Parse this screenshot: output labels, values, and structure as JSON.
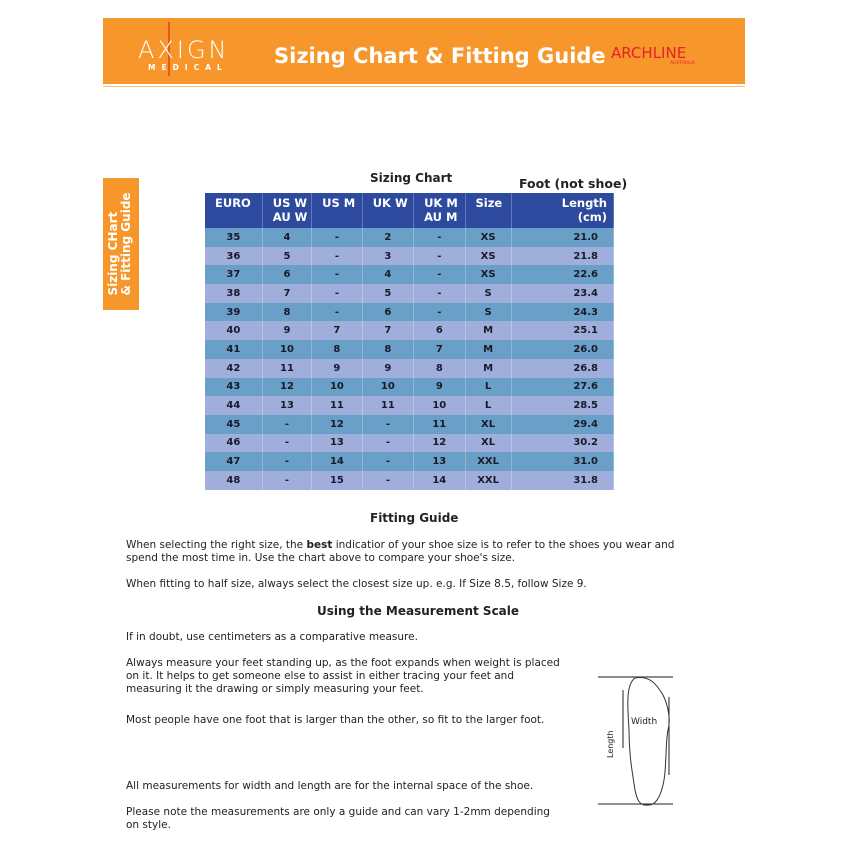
{
  "header": {
    "logo_left": "AXIGN",
    "logo_left_sub": "MEDICAL",
    "title": "Sizing Chart & Fitting Guide",
    "logo_right": "ARCHLINE",
    "logo_right_sub": "AUSTRALIA",
    "color": "#f7972b"
  },
  "side_tab": {
    "line1": "Sizing CHart",
    "line2": "& Fitting Guide"
  },
  "chart": {
    "title": "Sizing Chart",
    "foot_note": "Foot (not shoe)",
    "columns": [
      "EURO",
      "US W\nAU W",
      "US M",
      "UK W",
      "UK M\nAU M",
      "Size",
      "Length\n(cm)"
    ],
    "rows": [
      [
        "35",
        "4",
        "-",
        "2",
        "-",
        "XS",
        "21.0"
      ],
      [
        "36",
        "5",
        "-",
        "3",
        "-",
        "XS",
        "21.8"
      ],
      [
        "37",
        "6",
        "-",
        "4",
        "-",
        "XS",
        "22.6"
      ],
      [
        "38",
        "7",
        "-",
        "5",
        "-",
        "S",
        "23.4"
      ],
      [
        "39",
        "8",
        "-",
        "6",
        "-",
        "S",
        "24.3"
      ],
      [
        "40",
        "9",
        "7",
        "7",
        "6",
        "M",
        "25.1"
      ],
      [
        "41",
        "10",
        "8",
        "8",
        "7",
        "M",
        "26.0"
      ],
      [
        "42",
        "11",
        "9",
        "9",
        "8",
        "M",
        "26.8"
      ],
      [
        "43",
        "12",
        "10",
        "10",
        "9",
        "L",
        "27.6"
      ],
      [
        "44",
        "13",
        "11",
        "11",
        "10",
        "L",
        "28.5"
      ],
      [
        "45",
        "-",
        "12",
        "-",
        "11",
        "XL",
        "29.4"
      ],
      [
        "46",
        "-",
        "13",
        "-",
        "12",
        "XL",
        "30.2"
      ],
      [
        "47",
        "-",
        "14",
        "-",
        "13",
        "XXL",
        "31.0"
      ],
      [
        "48",
        "-",
        "15",
        "-",
        "14",
        "XXL",
        "31.8"
      ]
    ]
  },
  "fitting": {
    "title": "Fitting Guide",
    "p1_a": "When selecting the right size, the ",
    "p1_b": "best",
    "p1_c": " indicatior of your shoe size is to refer to the shoes you wear and spend the most time in. Use the chart above to compare your shoe's size.",
    "p2": "When fitting to half size, always select the closest size up. e.g. If Size 8.5, follow Size 9."
  },
  "measure": {
    "title": "Using the Measurement Scale",
    "p1": "If in doubt, use centimeters as a comparative measure.",
    "p2": "Always measure your feet standing up, as the foot expands when weight is placed on it. It helps to get someone else to assist in either tracing your feet and measuring it the drawing or simply measuring your feet.",
    "p3": "Most people have one foot that is larger than the other, so fit to the larger foot.",
    "p4": "All measurements for width and length are for the internal space of the shoe.",
    "p5": "Please note the measurements are only a guide and can vary 1-2mm depending on style.",
    "diagram_width": "Width",
    "diagram_length": "Length"
  }
}
